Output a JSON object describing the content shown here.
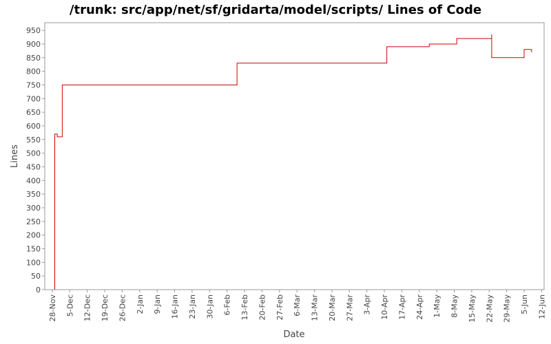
{
  "chart_data": {
    "type": "step-line",
    "title": "/trunk: src/app/net/sf/gridarta/model/scripts/ Lines of Code",
    "x_label": "Date",
    "y_label": "Lines",
    "series": [
      {
        "name": "Lines",
        "color": "#cc0000",
        "x": [
          "29-Nov",
          "29-Nov",
          "30-Nov",
          "2-Dec",
          "10-Feb",
          "11-Apr",
          "28-Apr",
          "9-May",
          "23-May",
          "23-May",
          "5-Jun",
          "8-Jun"
        ],
        "values": [
          0,
          570,
          560,
          750,
          830,
          890,
          900,
          920,
          935,
          850,
          880,
          870
        ]
      }
    ],
    "xlim": [
      "25-Nov",
      "13-Jun"
    ],
    "xticks": [
      "28-Nov",
      "5-Dec",
      "12-Dec",
      "19-Dec",
      "26-Dec",
      "2-Jan",
      "9-Jan",
      "16-Jan",
      "23-Jan",
      "30-Jan",
      "6-Feb",
      "13-Feb",
      "20-Feb",
      "27-Feb",
      "6-Mar",
      "13-Mar",
      "20-Mar",
      "27-Mar",
      "3-Apr",
      "10-Apr",
      "17-Apr",
      "24-Apr",
      "1-May",
      "8-May",
      "15-May",
      "22-May",
      "29-May",
      "5-Jun",
      "12-Jun"
    ],
    "ylim": [
      0,
      978
    ],
    "yticks": [
      0,
      50,
      100,
      150,
      200,
      250,
      300,
      350,
      400,
      450,
      500,
      550,
      600,
      650,
      700,
      750,
      800,
      850,
      900,
      950
    ],
    "grid": false
  }
}
